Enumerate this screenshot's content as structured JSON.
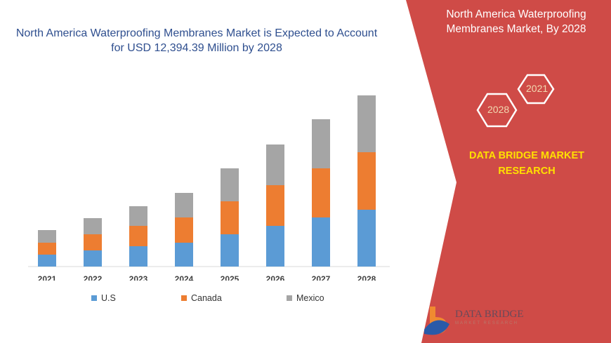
{
  "title": "North America Waterproofing Membranes Market is Expected to Account for USD 12,394.39 Million by 2028",
  "panel": {
    "title": "North America Waterproofing Membranes Market, By 2028",
    "hex_years": [
      "2021",
      "2028"
    ],
    "brand": "DATA BRIDGE MARKET RESEARCH",
    "logo_text": "DATA BRIDGE",
    "logo_sub": "MARKET RESEARCH",
    "colors": {
      "panel": "#cf4b47",
      "brand_text": "#ffe000"
    }
  },
  "chart_data": {
    "type": "bar",
    "stacked": true,
    "categories": [
      "2021",
      "2022",
      "2023",
      "2024",
      "2025",
      "2026",
      "2027",
      "2028"
    ],
    "series": [
      {
        "name": "U.S",
        "color": "#5b9bd5",
        "values": [
          17,
          23,
          29,
          34,
          46,
          58,
          70,
          81
        ]
      },
      {
        "name": "Canada",
        "color": "#ed7d31",
        "values": [
          17,
          23,
          29,
          36,
          47,
          58,
          70,
          82
        ]
      },
      {
        "name": "Mexico",
        "color": "#a5a5a5",
        "values": [
          18,
          23,
          28,
          35,
          47,
          58,
          70,
          81
        ]
      }
    ],
    "note": "relative bar heights; no value axis printed",
    "legend": "bottom",
    "grid": false
  }
}
